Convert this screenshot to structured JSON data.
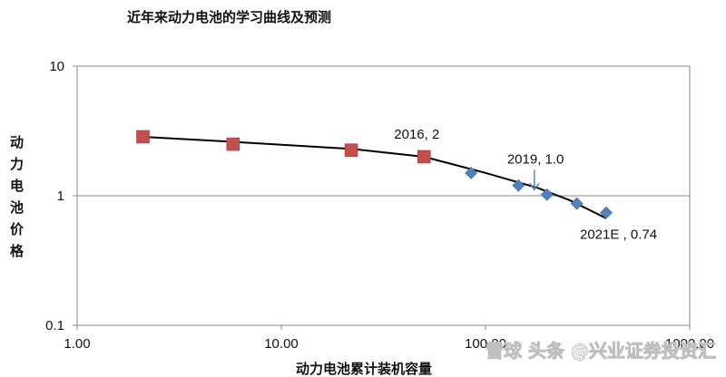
{
  "chart_data": {
    "type": "scatter",
    "title": "近年来动力电池的学习曲线及预测",
    "xlabel": "动力电池累计装机容量",
    "ylabel": "动力电池价格",
    "x_scale": "log",
    "y_scale": "log",
    "xlim": [
      1,
      1000
    ],
    "ylim": [
      0.1,
      10
    ],
    "x_ticks": [
      "1.00",
      "10.00",
      "100.00",
      "1000.00"
    ],
    "y_ticks": [
      "0.1",
      "1",
      "10"
    ],
    "grid": "horizontal",
    "legend": "none",
    "series": [
      {
        "marker": "square",
        "color": "#c0504d",
        "points": [
          [
            2.1,
            2.85
          ],
          [
            5.8,
            2.5
          ],
          [
            22,
            2.25
          ],
          [
            50,
            2.0
          ]
        ]
      },
      {
        "marker": "diamond",
        "color": "#4f81bd",
        "points": [
          [
            85,
            1.5
          ],
          [
            145,
            1.2
          ],
          [
            200,
            1.02
          ],
          [
            280,
            0.87
          ],
          [
            390,
            0.74
          ]
        ]
      }
    ],
    "trendline": {
      "color": "#000000",
      "points": [
        [
          2.1,
          2.85
        ],
        [
          6,
          2.6
        ],
        [
          22,
          2.3
        ],
        [
          50,
          2.0
        ],
        [
          100,
          1.5
        ],
        [
          180,
          1.15
        ],
        [
          260,
          0.92
        ],
        [
          390,
          0.67
        ]
      ]
    },
    "annotations": [
      {
        "text": "2016, 2",
        "x": 50,
        "y": 2.0
      },
      {
        "text": "2019, 1.0",
        "x": 170,
        "y": 1.15
      },
      {
        "text": "2021E , 0.74",
        "x": 390,
        "y": 0.74
      }
    ]
  },
  "watermark": "雪球 头条 @兴业证券投资汇",
  "colors": {
    "grid": "#888888",
    "axis": "#888888"
  }
}
